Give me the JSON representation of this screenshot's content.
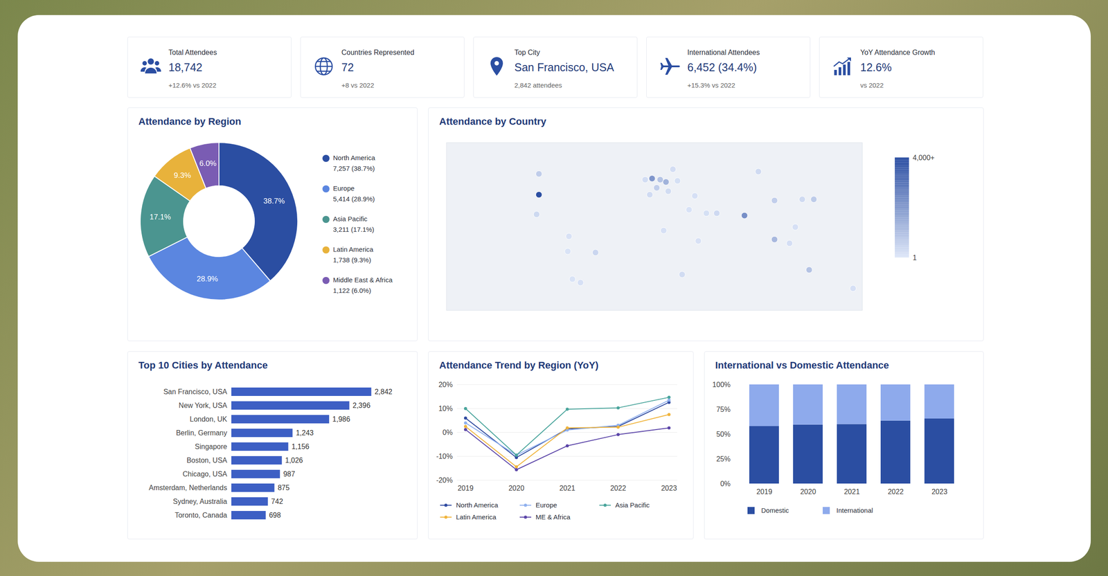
{
  "kpis": [
    {
      "label": "Total Attendees",
      "value": "18,742",
      "note": "+12.6% vs 2022"
    },
    {
      "label": "Countries Represented",
      "value": "72",
      "note": "+8 vs 2022"
    },
    {
      "label": "Top City",
      "value": "San Francisco, USA",
      "note": "2,842 attendees"
    },
    {
      "label": "International Attendees",
      "value": "6,452 (34.4%)",
      "note": "+15.3% vs 2022"
    },
    {
      "label": "YoY Attendance Growth",
      "value": "12.6%",
      "note": "vs 2022"
    }
  ],
  "chart_data": [
    {
      "type": "pie",
      "title": "Attendance by Region",
      "categories": [
        "North America",
        "Europe",
        "Asia Pacific",
        "Latin America",
        "Middle East & Africa"
      ],
      "values": [
        38.7,
        28.9,
        17.1,
        9.3,
        6.0
      ],
      "value_labels": [
        "38.7%",
        "28.9%",
        "17.1%",
        "9.3%",
        "6.0%"
      ],
      "legend_labels": [
        "7,257 (38.7%)",
        "5,414 (28.9%)",
        "3,211 (17.1%)",
        "1,738 (9.3%)",
        "1,122 (6.0%)"
      ],
      "colors": [
        "#2b4ea2",
        "#5b86e0",
        "#4b9590",
        "#e8b23b",
        "#7a5cb3"
      ],
      "data_labels": true,
      "legend": "right"
    },
    {
      "type": "map",
      "title": "Attendance by Country",
      "tick_labels": false,
      "xlim": [
        -180,
        180
      ],
      "ylim": [
        -60,
        85
      ],
      "points": [
        {
          "lon": -100,
          "lat": 40,
          "value": 6500
        },
        {
          "lon": -100,
          "lat": 58,
          "value": 650
        },
        {
          "lon": -102,
          "lat": 23,
          "value": 350
        },
        {
          "lon": -74,
          "lat": 4,
          "value": 120
        },
        {
          "lon": -75,
          "lat": -9,
          "value": 80
        },
        {
          "lon": -51,
          "lat": -10,
          "value": 420
        },
        {
          "lon": -71,
          "lat": -33,
          "value": 90
        },
        {
          "lon": -64,
          "lat": -36,
          "value": 160
        },
        {
          "lon": -2,
          "lat": 54,
          "value": 2100
        },
        {
          "lon": -8,
          "lat": 53,
          "value": 250
        },
        {
          "lon": 2,
          "lat": 46,
          "value": 620
        },
        {
          "lon": -4,
          "lat": 40,
          "value": 300
        },
        {
          "lon": 10,
          "lat": 51,
          "value": 1350
        },
        {
          "lon": 5,
          "lat": 53,
          "value": 900
        },
        {
          "lon": 12,
          "lat": 43,
          "value": 260
        },
        {
          "lon": 16,
          "lat": 62,
          "value": 230
        },
        {
          "lon": 20,
          "lat": 52,
          "value": 170
        },
        {
          "lon": 90,
          "lat": 60,
          "value": 320
        },
        {
          "lon": 35,
          "lat": 39,
          "value": 160
        },
        {
          "lon": 45,
          "lat": 24,
          "value": 170
        },
        {
          "lon": 54,
          "lat": 24,
          "value": 330
        },
        {
          "lon": 30,
          "lat": 27,
          "value": 110
        },
        {
          "lon": 8,
          "lat": 9,
          "value": 160
        },
        {
          "lon": 38,
          "lat": 0,
          "value": 120
        },
        {
          "lon": 24,
          "lat": -29,
          "value": 260
        },
        {
          "lon": 78,
          "lat": 22,
          "value": 2300
        },
        {
          "lon": 104,
          "lat": 35,
          "value": 620
        },
        {
          "lon": 138,
          "lat": 36,
          "value": 720
        },
        {
          "lon": 128,
          "lat": 36,
          "value": 310
        },
        {
          "lon": 104,
          "lat": 1.3,
          "value": 1200
        },
        {
          "lon": 117,
          "lat": -2,
          "value": 210
        },
        {
          "lon": 122,
          "lat": 12,
          "value": 160
        },
        {
          "lon": 134,
          "lat": -25,
          "value": 920
        },
        {
          "lon": 172,
          "lat": -41,
          "value": 160
        }
      ],
      "colorbar": {
        "range": [
          1,
          4000
        ],
        "colors": [
          "#dde6f8",
          "#2b4ea2"
        ],
        "ticks": [
          {
            "value": 1,
            "label": "1"
          },
          {
            "value": 4000,
            "label": "4,000+"
          }
        ]
      }
    },
    {
      "type": "bar",
      "title": "Top 10 Cities by Attendance",
      "orientation": "horizontal",
      "categories": [
        "San Francisco, USA",
        "New York, USA",
        "London, UK",
        "Berlin, Germany",
        "Singapore",
        "Boston, USA",
        "Chicago, USA",
        "Amsterdam, Netherlands",
        "Sydney, Australia",
        "Toronto, Canada"
      ],
      "values": [
        2842,
        2396,
        1986,
        1243,
        1156,
        1026,
        987,
        875,
        742,
        698
      ],
      "value_labels": [
        "2,842",
        "2,396",
        "1,986",
        "1,243",
        "1,156",
        "1,026",
        "987",
        "875",
        "742",
        "698"
      ],
      "color": "#3d5fc4",
      "xlim": [
        0,
        3000
      ],
      "data_labels": true,
      "tick_labels": "y"
    },
    {
      "type": "line",
      "title": "Attendance Trend by Region (YoY)",
      "categories": [
        "2019",
        "2020",
        "2021",
        "2022",
        "2023"
      ],
      "series": [
        {
          "name": "North America",
          "color": "#2f4aa0",
          "values": [
            6,
            -10.5,
            1.5,
            2.5,
            12.6
          ]
        },
        {
          "name": "Europe",
          "color": "#8fb0ee",
          "values": [
            4,
            -9.5,
            1,
            3,
            13.5
          ]
        },
        {
          "name": "Asia Pacific",
          "color": "#4aa59c",
          "values": [
            10,
            -9.5,
            9.7,
            10.3,
            14.7
          ]
        },
        {
          "name": "Latin America",
          "color": "#f0b43c",
          "values": [
            2.5,
            -14.4,
            1.9,
            2.2,
            7.5
          ]
        },
        {
          "name": "ME & Africa",
          "color": "#5b45a8",
          "values": [
            1.2,
            -15.6,
            -5.6,
            -0.9,
            1.9
          ]
        }
      ],
      "ylim": [
        -20,
        20
      ],
      "yticks": [
        {
          "value": -20,
          "label": "-20%"
        },
        {
          "value": -10,
          "label": "-10%"
        },
        {
          "value": 0,
          "label": "0%"
        },
        {
          "value": 10,
          "label": "10%"
        },
        {
          "value": 20,
          "label": "20%"
        }
      ],
      "grid": true,
      "marker": "circle",
      "legend": "bottom"
    },
    {
      "type": "bar",
      "title": "International vs Domestic Attendance",
      "stacked": true,
      "categories": [
        "2019",
        "2020",
        "2021",
        "2022",
        "2023"
      ],
      "series": [
        {
          "name": "Domestic",
          "color": "#2b4ea2",
          "values": [
            58,
            59.5,
            60,
            63.5,
            65.6
          ]
        },
        {
          "name": "International",
          "color": "#8eaaec",
          "values": [
            42,
            40.5,
            40,
            36.5,
            34.4
          ]
        }
      ],
      "ylim": [
        0,
        100
      ],
      "yticks": [
        {
          "value": 0,
          "label": "0%"
        },
        {
          "value": 25,
          "label": "25%"
        },
        {
          "value": 50,
          "label": "50%"
        },
        {
          "value": 75,
          "label": "75%"
        },
        {
          "value": 100,
          "label": "100%"
        }
      ],
      "grid": false,
      "legend": "bottom"
    }
  ]
}
